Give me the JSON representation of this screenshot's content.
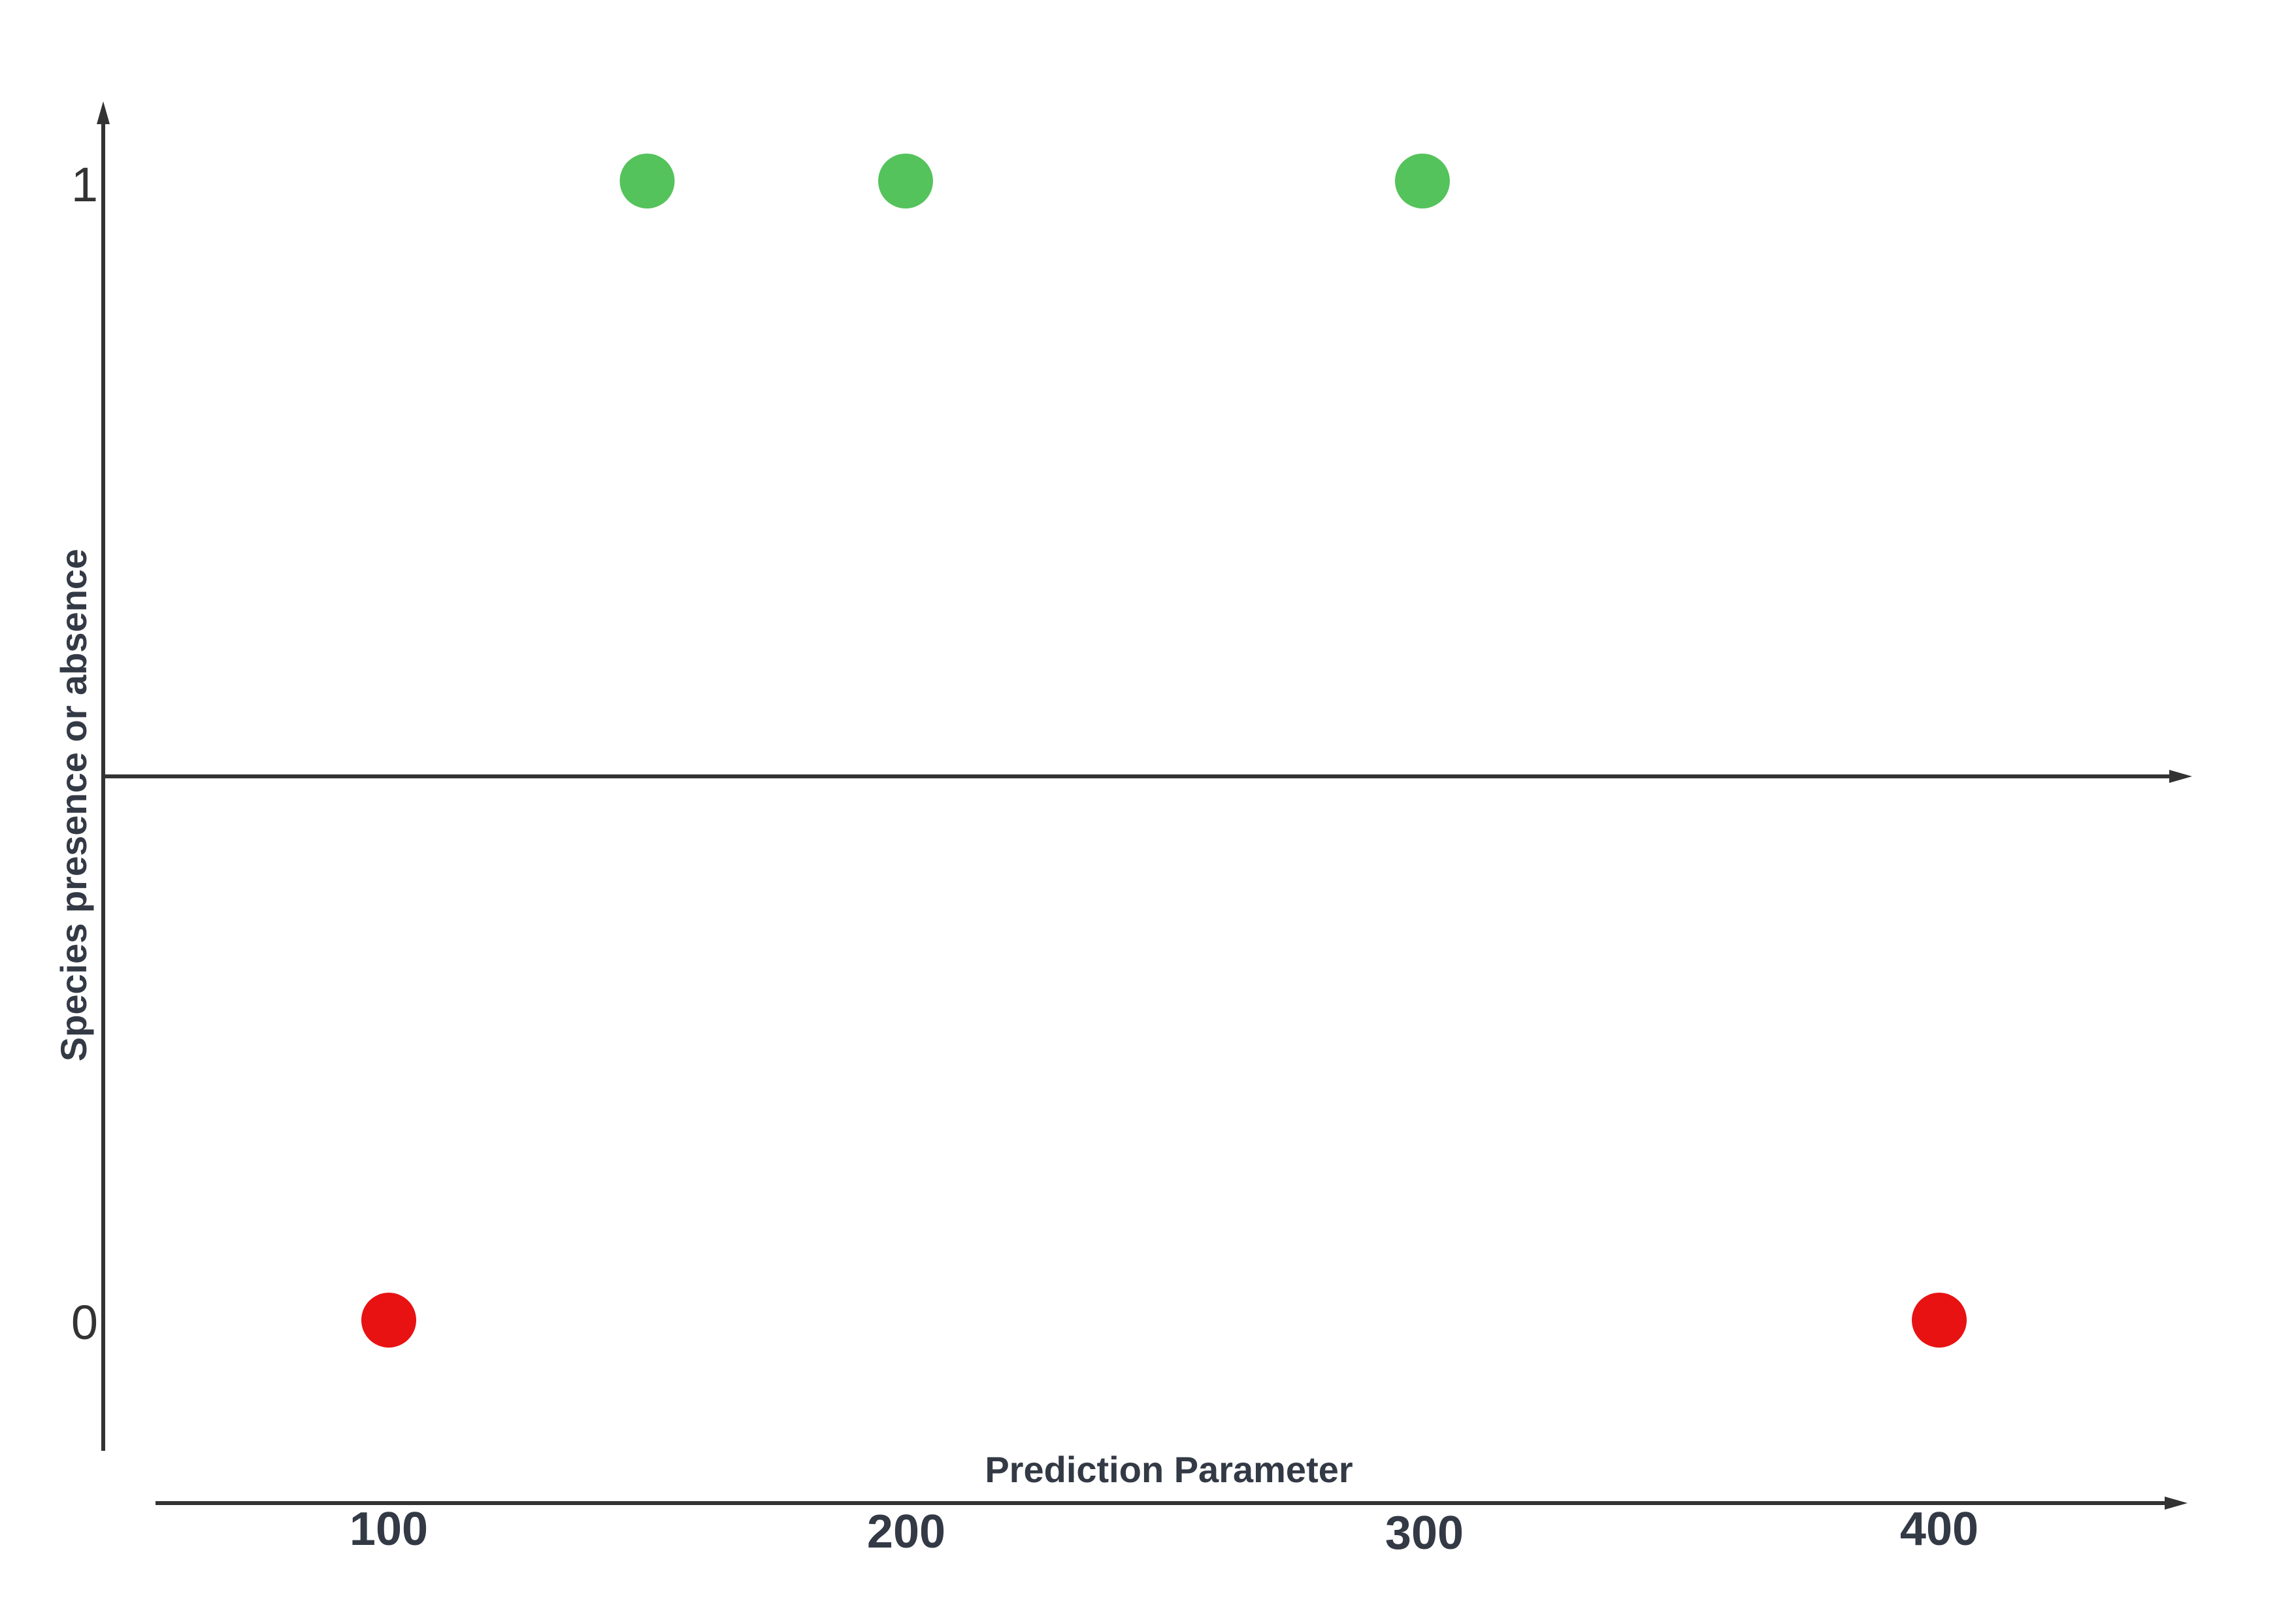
{
  "chart_data": {
    "type": "scatter",
    "title": "",
    "xlabel": "Prediction Parameter",
    "ylabel": "Species presence or absence",
    "x_ticks": [
      "100",
      "200",
      "300",
      "400"
    ],
    "y_ticks": [
      "0",
      "1"
    ],
    "xlim": [
      55,
      460
    ],
    "ylim": [
      -0.11,
      1.07
    ],
    "points": [
      {
        "x": 100,
        "y": 0,
        "color": "#e81212"
      },
      {
        "x": 150,
        "y": 1,
        "color": "#55c35b"
      },
      {
        "x": 200,
        "y": 1,
        "color": "#55c35b"
      },
      {
        "x": 300,
        "y": 1,
        "color": "#55c35b"
      },
      {
        "x": 400,
        "y": 0,
        "color": "#e81212"
      }
    ],
    "grid": false,
    "colors": {
      "presence": "#55c35b",
      "absence": "#e81212",
      "axis": "#333333"
    }
  }
}
